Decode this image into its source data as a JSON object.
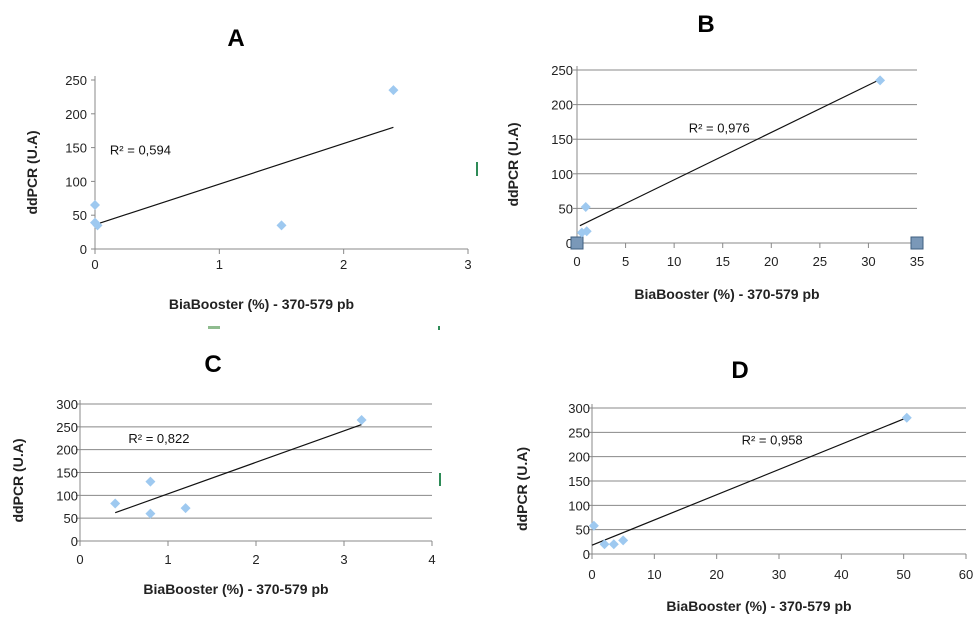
{
  "chart_data": [
    {
      "id": "A",
      "type": "scatter",
      "title": "A",
      "xlabel": "BiaBooster (%) - 370-579 pb",
      "ylabel": "ddPCR (U.A)",
      "xlim": [
        0,
        3
      ],
      "ylim": [
        0,
        250
      ],
      "xticks": [
        "0",
        "1",
        "2",
        "3"
      ],
      "yticks": [
        "0",
        "50",
        "100",
        "150",
        "200",
        "250"
      ],
      "grid": false,
      "points": [
        {
          "x": 0,
          "y": 65
        },
        {
          "x": 0,
          "y": 39
        },
        {
          "x": 0.02,
          "y": 35
        },
        {
          "x": 1.5,
          "y": 35
        },
        {
          "x": 2.4,
          "y": 235
        }
      ],
      "trendline": {
        "x0": 0,
        "y0": 36,
        "x1": 2.4,
        "y1": 180
      },
      "r2_label": "R² = 0,594",
      "r2_pos": {
        "x": 0.12,
        "y": 140
      }
    },
    {
      "id": "B",
      "type": "scatter",
      "title": "B",
      "xlabel": "BiaBooster (%) - 370-579 pb",
      "ylabel": "ddPCR (U.A)",
      "xlim": [
        0,
        35
      ],
      "ylim": [
        0,
        250
      ],
      "xticks": [
        "0",
        "5",
        "10",
        "15",
        "20",
        "25",
        "30",
        "35"
      ],
      "yticks": [
        "0",
        "50",
        "100",
        "150",
        "200",
        "250"
      ],
      "grid": true,
      "points": [
        {
          "x": 31.2,
          "y": 235
        },
        {
          "x": 0.9,
          "y": 52
        },
        {
          "x": 0.5,
          "y": 15
        },
        {
          "x": 1.0,
          "y": 17
        }
      ],
      "extra_points": [
        {
          "x": 0,
          "y": 0
        },
        {
          "x": 35,
          "y": 0
        }
      ],
      "trendline": {
        "x0": 0.3,
        "y0": 25,
        "x1": 31,
        "y1": 235
      },
      "r2_label": "R² = 0,976",
      "r2_pos": {
        "x": 11.5,
        "y": 160
      }
    },
    {
      "id": "C",
      "type": "scatter",
      "title": "C",
      "xlabel": "BiaBooster (%) - 370-579 pb",
      "ylabel": "ddPCR (U.A)",
      "xlim": [
        0,
        4
      ],
      "ylim": [
        0,
        300
      ],
      "xticks": [
        "0",
        "1",
        "2",
        "3",
        "4"
      ],
      "yticks": [
        "0",
        "50",
        "100",
        "150",
        "200",
        "250",
        "300"
      ],
      "grid": true,
      "points": [
        {
          "x": 0.4,
          "y": 82
        },
        {
          "x": 0.8,
          "y": 130
        },
        {
          "x": 0.8,
          "y": 60
        },
        {
          "x": 1.2,
          "y": 72
        },
        {
          "x": 3.2,
          "y": 265
        }
      ],
      "trendline": {
        "x0": 0.4,
        "y0": 62,
        "x1": 3.2,
        "y1": 255
      },
      "r2_label": "R² = 0,822",
      "r2_pos": {
        "x": 0.55,
        "y": 215
      }
    },
    {
      "id": "D",
      "type": "scatter",
      "title": "D",
      "xlabel": "BiaBooster (%) - 370-579 pb",
      "ylabel": "ddPCR (U.A)",
      "xlim": [
        0,
        60
      ],
      "ylim": [
        0,
        300
      ],
      "xticks": [
        "0",
        "10",
        "20",
        "30",
        "40",
        "50",
        "60"
      ],
      "yticks": [
        "0",
        "50",
        "100",
        "150",
        "200",
        "250",
        "300"
      ],
      "grid": true,
      "points": [
        {
          "x": 0.3,
          "y": 58
        },
        {
          "x": 2,
          "y": 20
        },
        {
          "x": 3.5,
          "y": 20
        },
        {
          "x": 5,
          "y": 28
        },
        {
          "x": 50.5,
          "y": 280
        }
      ],
      "trendline": {
        "x0": 0,
        "y0": 18,
        "x1": 50.5,
        "y1": 280
      },
      "r2_label": "R² = 0,958",
      "r2_pos": {
        "x": 24,
        "y": 225
      }
    }
  ],
  "colors": {
    "point": "#9ec9f0",
    "extra_point_fill": "#7a98b8",
    "extra_point_stroke": "#3f5f80",
    "grid": "#888888",
    "axis": "#888888",
    "trendline": "#111111"
  }
}
